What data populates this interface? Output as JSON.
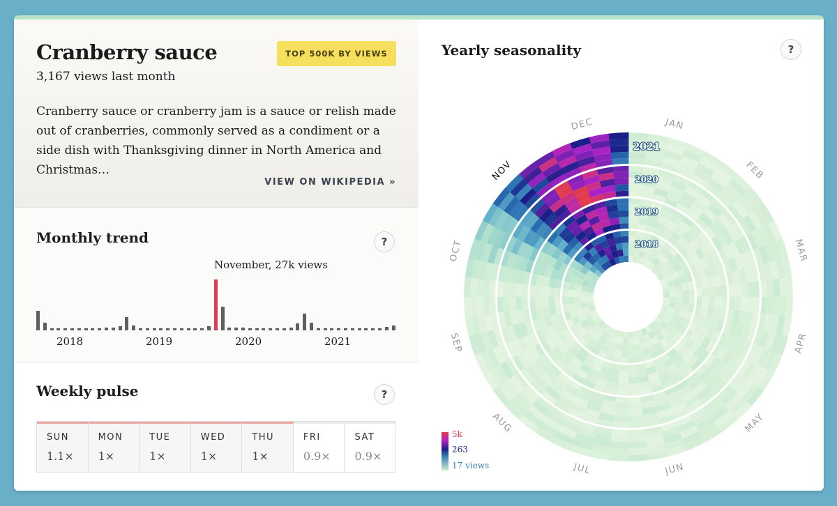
{
  "article": {
    "title": "Cranberry sauce",
    "views_last_month": "3,167 views last month",
    "badge": "TOP 500K BY VIEWS",
    "description": "Cranberry sauce or cranberry jam is a sauce or relish made out of cranberries, commonly served as a condiment or a side dish with Thanksgiving dinner in North America and Christmas…",
    "wiki_link": "VIEW ON WIKIPEDIA »"
  },
  "monthly": {
    "title": "Monthly trend",
    "help": "?",
    "tooltip": "November, 27k views",
    "year_labels": [
      "2018",
      "2019",
      "2020",
      "2021"
    ]
  },
  "weekly": {
    "title": "Weekly pulse",
    "help": "?",
    "days": [
      {
        "name": "SUN",
        "value": "1.1×",
        "low": false
      },
      {
        "name": "MON",
        "value": "1×",
        "low": false
      },
      {
        "name": "TUE",
        "value": "1×",
        "low": false
      },
      {
        "name": "WED",
        "value": "1×",
        "low": false
      },
      {
        "name": "THU",
        "value": "1×",
        "low": false
      },
      {
        "name": "FRI",
        "value": "0.9×",
        "low": true
      },
      {
        "name": "SAT",
        "value": "0.9×",
        "low": true
      }
    ]
  },
  "seasonality": {
    "title": "Yearly seasonality",
    "help": "?",
    "months": [
      "JAN",
      "FEB",
      "MAR",
      "APR",
      "MAY",
      "JUN",
      "JUL",
      "AUG",
      "SEP",
      "OCT",
      "NOV",
      "DEC"
    ],
    "highlight_month": "NOV",
    "rings": [
      "2018",
      "2019",
      "2020",
      "2021"
    ],
    "legend": {
      "max": "5k",
      "mid": "263",
      "min": "17 views"
    }
  },
  "colors": {
    "accent_red": "#e23b4f",
    "bar_gray": "#5f5f5f",
    "badge_yellow": "#f7df5e"
  },
  "chart_data": [
    {
      "type": "bar",
      "title": "Monthly trend",
      "series": [
        {
          "values": [
            10.5,
            4.2,
            1.1,
            1.1,
            1.1,
            0.9,
            0.9,
            0.9,
            0.9,
            0.9,
            1.3,
            1.3,
            2.1,
            7.1,
            2.5,
            0.9,
            0.9,
            0.9,
            0.8,
            0.8,
            0.8,
            0.8,
            0.8,
            0.8,
            1.2,
            2.1,
            27,
            12.5,
            1.3,
            1.3,
            1.3,
            1.0,
            1.0,
            1.0,
            1.0,
            1.0,
            1.0,
            1.3,
            3.8,
            8.8,
            4.2,
            1.0,
            1.0,
            1.0,
            0.8,
            0.8,
            0.8,
            0.8,
            0.8,
            0.8,
            1.2,
            1.7,
            2.7
          ]
        }
      ],
      "categories_start": "2018",
      "highlight": {
        "label": "November",
        "value": 27
      }
    },
    {
      "type": "heatmap",
      "title": "Yearly seasonality",
      "rings": [
        "2018",
        "2019",
        "2020",
        "2021"
      ],
      "angular": [
        "JAN",
        "FEB",
        "MAR",
        "APR",
        "MAY",
        "JUN",
        "JUL",
        "AUG",
        "SEP",
        "OCT",
        "NOV",
        "DEC"
      ],
      "color_scale": {
        "min": 17,
        "mid": 263,
        "max": 5000
      },
      "peak_months": [
        "NOV",
        "DEC"
      ]
    }
  ]
}
